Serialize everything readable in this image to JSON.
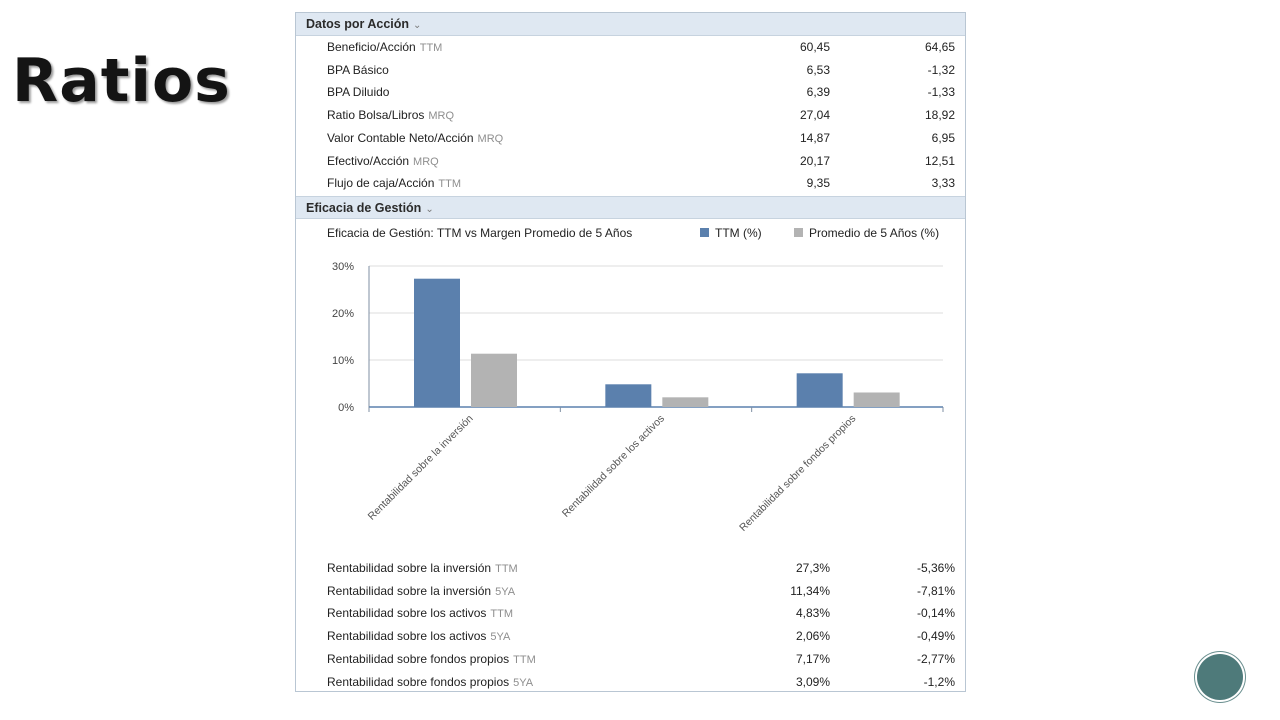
{
  "slide": {
    "title": "Ratios"
  },
  "datos": {
    "header": "Datos por Acción",
    "rows": [
      {
        "label": "Beneficio/Acción",
        "qualifier": "TTM",
        "v1": "60,45",
        "v2": "64,65"
      },
      {
        "label": "BPA Básico",
        "qualifier": "",
        "v1": "6,53",
        "v2": "-1,32"
      },
      {
        "label": "BPA Diluido",
        "qualifier": "",
        "v1": "6,39",
        "v2": "-1,33"
      },
      {
        "label": "Ratio Bolsa/Libros",
        "qualifier": "MRQ",
        "v1": "27,04",
        "v2": "18,92"
      },
      {
        "label": "Valor Contable Neto/Acción",
        "qualifier": "MRQ",
        "v1": "14,87",
        "v2": "6,95"
      },
      {
        "label": "Efectivo/Acción",
        "qualifier": "MRQ",
        "v1": "20,17",
        "v2": "12,51"
      },
      {
        "label": "Flujo de caja/Acción",
        "qualifier": "TTM",
        "v1": "9,35",
        "v2": "3,33"
      }
    ]
  },
  "eficacia": {
    "header": "Eficacia de Gestión",
    "rows": [
      {
        "label": "Rentabilidad sobre la inversión",
        "qualifier": "TTM",
        "v1": "27,3%",
        "v2": "-5,36%"
      },
      {
        "label": "Rentabilidad sobre la inversión",
        "qualifier": "5YA",
        "v1": "11,34%",
        "v2": "-7,81%"
      },
      {
        "label": "Rentabilidad sobre los activos",
        "qualifier": "TTM",
        "v1": "4,83%",
        "v2": "-0,14%"
      },
      {
        "label": "Rentabilidad sobre los activos",
        "qualifier": "5YA",
        "v1": "2,06%",
        "v2": "-0,49%"
      },
      {
        "label": "Rentabilidad sobre fondos propios",
        "qualifier": "TTM",
        "v1": "7,17%",
        "v2": "-2,77%"
      },
      {
        "label": "Rentabilidad sobre fondos propios",
        "qualifier": "5YA",
        "v1": "3,09%",
        "v2": "-1,2%"
      }
    ]
  },
  "chart_data": {
    "type": "bar",
    "title": "Eficacia de Gestión: TTM vs Margen Promedio de 5 Años",
    "categories": [
      "Rentabilidad sobre la inversión",
      "Rentabilidad sobre los activos",
      "Rentabilidad sobre fondos propios"
    ],
    "series": [
      {
        "name": "TTM (%)",
        "values": [
          27.3,
          4.83,
          7.17
        ],
        "color": "#5b80ad"
      },
      {
        "name": "Promedio de 5 Años (%)",
        "values": [
          11.34,
          2.06,
          3.09
        ],
        "color": "#b3b3b3"
      }
    ],
    "yticks": [
      "0%",
      "10%",
      "20%",
      "30%"
    ],
    "ylim": [
      0,
      30
    ],
    "grid": true,
    "legend": "top-right"
  }
}
